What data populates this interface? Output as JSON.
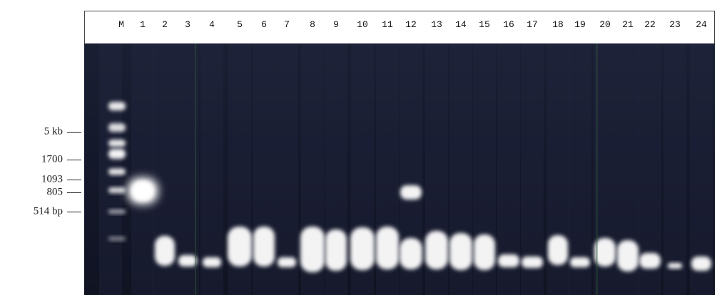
{
  "lanes": [
    "M",
    "1",
    "2",
    "3",
    "4",
    "5",
    "6",
    "7",
    "8",
    "9",
    "10",
    "11",
    "12",
    "13",
    "14",
    "15",
    "16",
    "17",
    "18",
    "19",
    "20",
    "21",
    "22",
    "23",
    "24"
  ],
  "size_markers": [
    "5 kb",
    "1700",
    "1093",
    "805",
    "514 bp"
  ]
}
